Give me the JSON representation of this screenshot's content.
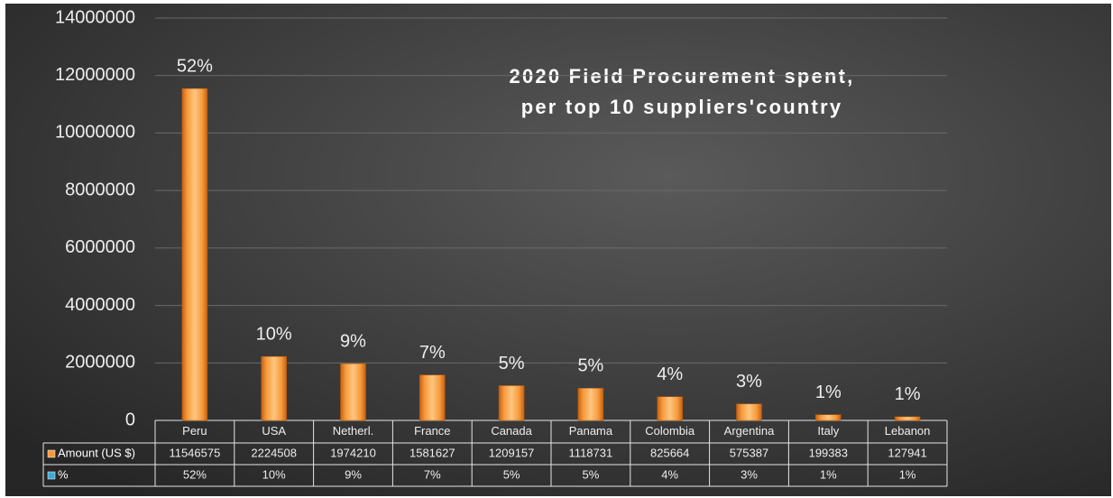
{
  "chart_data": {
    "type": "bar",
    "title": [
      "2020 Field Procurement spent,",
      "per top 10 suppliers'country"
    ],
    "categories": [
      "Peru",
      "USA",
      "Netherl.",
      "France",
      "Canada",
      "Panama",
      "Colombia",
      "Argentina",
      "Italy",
      "Lebanon"
    ],
    "series": [
      {
        "name": "Amount (US $)",
        "color": "#f59a3c",
        "values": [
          11546575,
          2224508,
          1974210,
          1581627,
          1209157,
          1118731,
          825664,
          575387,
          199383,
          127941
        ]
      },
      {
        "name": "%",
        "color": "#3fa9d6",
        "values": [
          52,
          10,
          9,
          7,
          5,
          5,
          4,
          3,
          1,
          1
        ],
        "value_labels": [
          "52%",
          "10%",
          "9%",
          "7%",
          "5%",
          "5%",
          "4%",
          "3%",
          "1%",
          "1%"
        ]
      }
    ],
    "ylim": [
      0,
      14000000
    ],
    "yticks": [
      0,
      2000000,
      4000000,
      6000000,
      8000000,
      10000000,
      12000000,
      14000000
    ],
    "grid": true
  }
}
